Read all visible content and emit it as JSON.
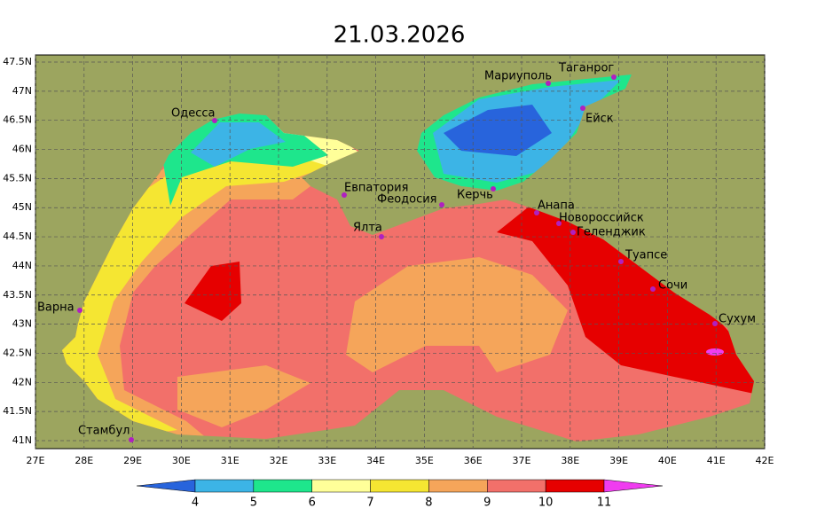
{
  "title": "21.03.2026",
  "lat_ticks": [
    {
      "value": 47.5,
      "label": "47.5N"
    },
    {
      "value": 47,
      "label": "47N"
    },
    {
      "value": 46.5,
      "label": "46.5N"
    },
    {
      "value": 46,
      "label": "46N"
    },
    {
      "value": 45.5,
      "label": "45.5N"
    },
    {
      "value": 45,
      "label": "45N"
    },
    {
      "value": 44.5,
      "label": "44.5N"
    },
    {
      "value": 44,
      "label": "44N"
    },
    {
      "value": 43.5,
      "label": "43.5N"
    },
    {
      "value": 43,
      "label": "43N"
    },
    {
      "value": 42.5,
      "label": "42.5N"
    },
    {
      "value": 42,
      "label": "42N"
    },
    {
      "value": 41.5,
      "label": "41.5N"
    },
    {
      "value": 41,
      "label": "41N"
    }
  ],
  "lon_ticks": [
    {
      "value": 27,
      "label": "27E"
    },
    {
      "value": 28,
      "label": "28E"
    },
    {
      "value": 29,
      "label": "29E"
    },
    {
      "value": 30,
      "label": "30E"
    },
    {
      "value": 31,
      "label": "31E"
    },
    {
      "value": 32,
      "label": "32E"
    },
    {
      "value": 33,
      "label": "33E"
    },
    {
      "value": 34,
      "label": "34E"
    },
    {
      "value": 35,
      "label": "35E"
    },
    {
      "value": 36,
      "label": "36E"
    },
    {
      "value": 37,
      "label": "37E"
    },
    {
      "value": 38,
      "label": "38E"
    },
    {
      "value": 39,
      "label": "39E"
    },
    {
      "value": 40,
      "label": "40E"
    },
    {
      "value": 41,
      "label": "41E"
    },
    {
      "value": 42,
      "label": "42E"
    }
  ],
  "cities": [
    "Одесса",
    "Евпатория",
    "Феодосия",
    "Керчь",
    "Ялта",
    "Анапа",
    "Новороссийск",
    "Геленджик",
    "Туапсе",
    "Сочи",
    "Сухум",
    "Мариуполь",
    "Таганрог",
    "Ейск",
    "Варна",
    "Стамбул"
  ],
  "colorbar": {
    "ticks": [
      4,
      5,
      6,
      7,
      8,
      9,
      10,
      11
    ],
    "colors": [
      "#2864dc",
      "#3cb4e6",
      "#1ee68c",
      "#ffff99",
      "#f5e632",
      "#f5a55a",
      "#f2706a",
      "#e60000",
      "#f03cf0"
    ]
  }
}
